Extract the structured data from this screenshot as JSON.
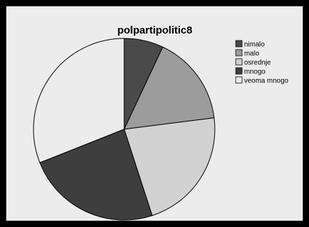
{
  "chart_data": {
    "type": "pie",
    "title": "polpartipolitic8",
    "categories": [
      "nimalo",
      "malo",
      "osrednje",
      "mnogo",
      "veoma mnogo"
    ],
    "values": [
      7,
      16,
      22,
      24,
      31
    ],
    "colors": [
      "#4a4a4a",
      "#9c9c9c",
      "#d2d2d2",
      "#3e3e3e",
      "#ececec"
    ],
    "legend": "top-right"
  }
}
